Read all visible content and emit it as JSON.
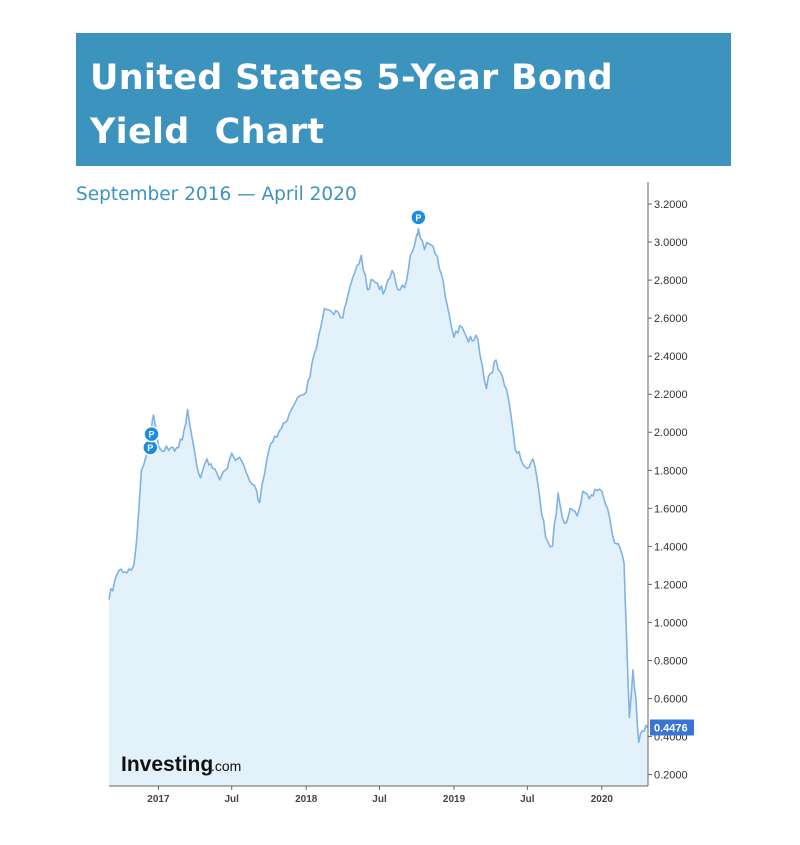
{
  "header": {
    "title": "United States 5-Year Bond\nYield  Chart",
    "subtitle": "September 2016 — April 2020"
  },
  "watermark": {
    "brand": "Investing",
    "suffix": ".com"
  },
  "colors": {
    "banner": "#3c93be",
    "line": "#7fb2e5",
    "fill": "#e2f1fa",
    "last_value_badge": "#3a75d6",
    "pin": "#1c8be0"
  },
  "chart_data": {
    "type": "area",
    "x_axis": {
      "ticks": [
        {
          "date": "2017-01-01",
          "label": "2017"
        },
        {
          "date": "2017-07-01",
          "label": "Jul"
        },
        {
          "date": "2018-01-01",
          "label": "2018"
        },
        {
          "date": "2018-07-01",
          "label": "Jul"
        },
        {
          "date": "2019-01-01",
          "label": "2019"
        },
        {
          "date": "2019-07-01",
          "label": "Jul"
        },
        {
          "date": "2020-01-01",
          "label": "2020"
        }
      ],
      "range": [
        "2016-09-01",
        "2020-04-24"
      ]
    },
    "y_axis": {
      "position": "right",
      "ticks": [
        "0.2000",
        "0.4000",
        "0.6000",
        "0.8000",
        "1.0000",
        "1.2000",
        "1.4000",
        "1.6000",
        "1.8000",
        "2.0000",
        "2.2000",
        "2.4000",
        "2.6000",
        "2.8000",
        "3.0000",
        "3.2000"
      ],
      "range": [
        0.14,
        3.3
      ]
    },
    "grid": false,
    "series": [
      {
        "x": [
          "2016-09-01",
          "2016-09-15",
          "2016-10-01",
          "2016-10-15",
          "2016-11-01",
          "2016-11-09",
          "2016-11-20",
          "2016-12-01",
          "2016-12-15",
          "2016-12-20",
          "2017-01-01",
          "2017-01-15",
          "2017-02-01",
          "2017-02-15",
          "2017-03-01",
          "2017-03-14",
          "2017-04-01",
          "2017-04-15",
          "2017-05-01",
          "2017-05-15",
          "2017-06-01",
          "2017-06-15",
          "2017-07-01",
          "2017-07-15",
          "2017-08-01",
          "2017-08-15",
          "2017-09-01",
          "2017-09-08",
          "2017-09-20",
          "2017-10-01",
          "2017-10-15",
          "2017-11-01",
          "2017-11-15",
          "2017-12-01",
          "2017-12-15",
          "2018-01-01",
          "2018-01-15",
          "2018-02-01",
          "2018-02-15",
          "2018-03-01",
          "2018-03-15",
          "2018-04-01",
          "2018-04-15",
          "2018-05-01",
          "2018-05-17",
          "2018-06-01",
          "2018-06-15",
          "2018-07-01",
          "2018-07-15",
          "2018-08-01",
          "2018-08-15",
          "2018-09-01",
          "2018-09-15",
          "2018-10-01",
          "2018-10-05",
          "2018-10-20",
          "2018-11-01",
          "2018-11-15",
          "2018-12-01",
          "2018-12-15",
          "2019-01-01",
          "2019-01-15",
          "2019-02-01",
          "2019-02-15",
          "2019-03-01",
          "2019-03-22",
          "2019-04-01",
          "2019-04-15",
          "2019-05-01",
          "2019-05-15",
          "2019-06-01",
          "2019-06-15",
          "2019-07-01",
          "2019-07-15",
          "2019-08-01",
          "2019-08-15",
          "2019-09-01",
          "2019-09-15",
          "2019-10-01",
          "2019-10-15",
          "2019-11-01",
          "2019-11-15",
          "2019-12-01",
          "2019-12-15",
          "2020-01-01",
          "2020-01-15",
          "2020-02-01",
          "2020-02-15",
          "2020-02-25",
          "2020-03-01",
          "2020-03-09",
          "2020-03-18",
          "2020-03-25",
          "2020-04-01",
          "2020-04-10",
          "2020-04-24"
        ],
        "values": [
          1.12,
          1.22,
          1.28,
          1.26,
          1.3,
          1.45,
          1.8,
          1.87,
          2.02,
          2.09,
          1.93,
          1.9,
          1.92,
          1.92,
          1.96,
          2.12,
          1.89,
          1.76,
          1.86,
          1.81,
          1.75,
          1.8,
          1.89,
          1.86,
          1.82,
          1.74,
          1.69,
          1.63,
          1.78,
          1.91,
          1.98,
          2.02,
          2.06,
          2.14,
          2.19,
          2.21,
          2.36,
          2.51,
          2.65,
          2.64,
          2.64,
          2.6,
          2.73,
          2.84,
          2.93,
          2.75,
          2.8,
          2.75,
          2.75,
          2.85,
          2.75,
          2.76,
          2.93,
          3.04,
          3.07,
          2.96,
          2.99,
          2.94,
          2.83,
          2.67,
          2.5,
          2.56,
          2.5,
          2.48,
          2.49,
          2.23,
          2.31,
          2.38,
          2.29,
          2.18,
          1.91,
          1.86,
          1.81,
          1.86,
          1.65,
          1.45,
          1.4,
          1.68,
          1.52,
          1.6,
          1.56,
          1.69,
          1.65,
          1.7,
          1.69,
          1.6,
          1.42,
          1.39,
          1.31,
          1.0,
          0.5,
          0.75,
          0.6,
          0.37,
          0.43,
          0.4476
        ]
      }
    ],
    "last_value_label": "0.4476",
    "event_markers": [
      {
        "date": "2016-12-12",
        "value": 1.92,
        "label": "P"
      },
      {
        "date": "2016-12-15",
        "value": 1.99,
        "label": "P"
      },
      {
        "date": "2018-10-05",
        "value": 3.13,
        "label": "P"
      }
    ]
  }
}
